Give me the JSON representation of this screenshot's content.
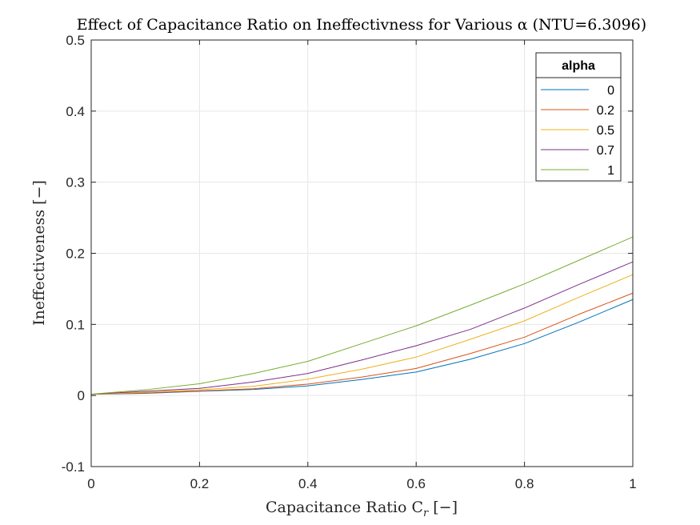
{
  "chart_data": {
    "type": "line",
    "title": "Effect of Capacitance Ratio on Ineffectivness for Various α (NTU=6.3096)",
    "xlabel": "Capacitance Ratio C",
    "xlabel_sub": "r",
    "xlabel_unit": "[−]",
    "ylabel": "Ineffectiveness [−]",
    "xlim": [
      0,
      1
    ],
    "ylim": [
      -0.1,
      0.5
    ],
    "xticks": [
      "0",
      "0.2",
      "0.4",
      "0.6",
      "0.8",
      "1"
    ],
    "yticks": [
      "-0.1",
      "0",
      "0.1",
      "0.2",
      "0.3",
      "0.4",
      "0.5"
    ],
    "grid": true,
    "legend_title": "alpha",
    "legend_position": "top-right",
    "x": [
      0,
      0.1,
      0.2,
      0.3,
      0.4,
      0.5,
      0.6,
      0.7,
      0.8,
      0.9,
      1.0
    ],
    "series": [
      {
        "name": "0",
        "color": "#0072BD",
        "values": [
          0.0018,
          0.003,
          0.006,
          0.0085,
          0.0135,
          0.0225,
          0.033,
          0.051,
          0.073,
          0.103,
          0.135
        ]
      },
      {
        "name": "0.2",
        "color": "#D95319",
        "values": [
          0.0018,
          0.0035,
          0.0065,
          0.0095,
          0.016,
          0.026,
          0.038,
          0.059,
          0.082,
          0.114,
          0.144
        ]
      },
      {
        "name": "0.5",
        "color": "#EDB120",
        "values": [
          0.0018,
          0.0045,
          0.008,
          0.013,
          0.023,
          0.037,
          0.054,
          0.079,
          0.105,
          0.138,
          0.17
        ]
      },
      {
        "name": "0.7",
        "color": "#7E2F8E",
        "values": [
          0.0018,
          0.006,
          0.01,
          0.019,
          0.031,
          0.05,
          0.07,
          0.093,
          0.123,
          0.156,
          0.188
        ]
      },
      {
        "name": "1",
        "color": "#77AC30",
        "values": [
          0.0018,
          0.008,
          0.0165,
          0.031,
          0.048,
          0.073,
          0.098,
          0.127,
          0.157,
          0.19,
          0.223
        ]
      }
    ]
  }
}
